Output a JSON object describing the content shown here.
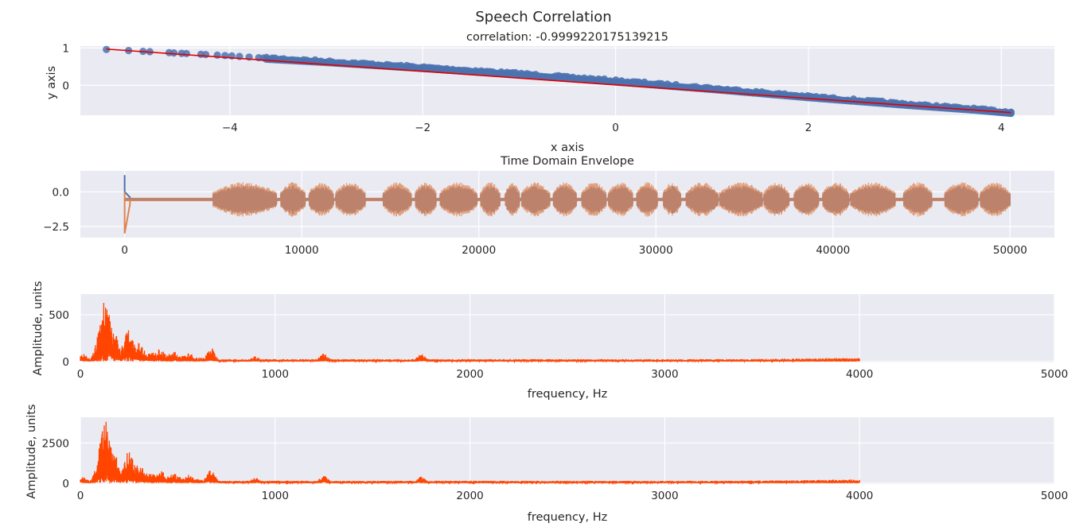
{
  "figure": {
    "title": "Speech Correlation"
  },
  "colors": {
    "axes_bg": "#EAEAF2",
    "grid": "#FFFFFF",
    "scatter": "#4C72B0",
    "regression": "#E00000",
    "envelope_a": "#4C72B0",
    "envelope_b": "#DD8452",
    "spectrum": "#FF4500"
  },
  "chart_data": [
    {
      "type": "scatter",
      "title": "correlation: -0.9999220175139215",
      "xlabel": "x axis",
      "ylabel": "y axis",
      "xlim": [
        -5.55,
        4.55
      ],
      "ylim": [
        -0.8,
        1.05
      ],
      "xticks": [
        -4,
        -2,
        0,
        2,
        4
      ],
      "xtick_labels": [
        "−4",
        "−2",
        "0",
        "2",
        "4"
      ],
      "yticks": [
        0,
        1
      ],
      "ytick_labels": [
        "0",
        "1"
      ],
      "grid": true,
      "x_range": [
        -5.28,
        4.1
      ],
      "correlation": -0.9999220175139215,
      "sample_points": [
        [
          -5.28,
          0.96
        ],
        [
          -5.05,
          0.93
        ],
        [
          -4.9,
          0.91
        ],
        [
          -4.6,
          0.87
        ],
        [
          -4.3,
          0.83
        ],
        [
          -4.0,
          0.79
        ],
        [
          -3.7,
          0.74
        ],
        [
          -3.0,
          0.64
        ],
        [
          -2.0,
          0.48
        ],
        [
          -1.0,
          0.31
        ],
        [
          0.0,
          0.12
        ],
        [
          1.0,
          -0.08
        ],
        [
          2.0,
          -0.3
        ],
        [
          3.0,
          -0.5
        ],
        [
          3.7,
          -0.63
        ],
        [
          4.1,
          -0.72
        ]
      ],
      "regression_line": [
        [
          -5.28,
          0.97
        ],
        [
          4.1,
          -0.73
        ]
      ],
      "legend": "none"
    },
    {
      "type": "line",
      "title": "Time Domain Envelope",
      "xlim": [
        -2500,
        52500
      ],
      "ylim": [
        -3.3,
        1.5
      ],
      "xticks": [
        0,
        10000,
        20000,
        30000,
        40000,
        50000
      ],
      "xtick_labels": [
        "0",
        "10000",
        "20000",
        "30000",
        "40000",
        "50000"
      ],
      "yticks": [
        0.0,
        -2.5
      ],
      "ytick_labels": [
        "0.0",
        "−2.5"
      ],
      "grid": true,
      "n_samples": 50000,
      "speech_segments": [
        [
          5000,
          8600
        ],
        [
          8800,
          10200
        ],
        [
          10400,
          11800
        ],
        [
          11900,
          13600
        ],
        [
          14600,
          16200
        ],
        [
          16400,
          17600
        ],
        [
          17800,
          19900
        ],
        [
          20100,
          21200
        ],
        [
          21500,
          22300
        ],
        [
          22400,
          24000
        ],
        [
          24200,
          25500
        ],
        [
          25800,
          27200
        ],
        [
          27300,
          28700
        ],
        [
          28900,
          30100
        ],
        [
          30400,
          31400
        ],
        [
          31700,
          33500
        ],
        [
          33600,
          36000
        ],
        [
          36100,
          37500
        ],
        [
          37800,
          39200
        ],
        [
          39400,
          40900
        ],
        [
          41000,
          43500
        ],
        [
          44000,
          45600
        ],
        [
          46300,
          48200
        ],
        [
          48300,
          50000
        ]
      ],
      "series": [
        {
          "values": {
            "peak": 1.2,
            "dip": -0.4,
            "speech_amp": 1.1,
            "silence_amp": 0.1
          }
        },
        {
          "values": {
            "peak": -3.0,
            "dip": -0.9,
            "speech_amp": 1.25,
            "silence_amp": 0.12
          }
        }
      ],
      "legend": "none"
    },
    {
      "type": "line",
      "xlabel": "frequency, Hz",
      "ylabel": "Amplitude, units",
      "xlim": [
        0,
        5000
      ],
      "ylim": [
        -10,
        720
      ],
      "xticks": [
        0,
        1000,
        2000,
        3000,
        4000,
        5000
      ],
      "xtick_labels": [
        "0",
        "1000",
        "2000",
        "3000",
        "4000",
        "5000"
      ],
      "yticks": [
        0,
        500
      ],
      "ytick_labels": [
        "0",
        "500"
      ],
      "grid": true,
      "freq_max": 4000,
      "peaks": [
        [
          0,
          100
        ],
        [
          130,
          690
        ],
        [
          160,
          390
        ],
        [
          250,
          340
        ],
        [
          300,
          200
        ],
        [
          410,
          140
        ],
        [
          480,
          110
        ],
        [
          560,
          90
        ],
        [
          670,
          150
        ],
        [
          900,
          60
        ],
        [
          1250,
          90
        ],
        [
          1750,
          80
        ]
      ],
      "legend": "none"
    },
    {
      "type": "line",
      "xlabel": "frequency, Hz",
      "ylabel": "Amplitude, units",
      "xlim": [
        0,
        5000
      ],
      "ylim": [
        -60,
        4100
      ],
      "xticks": [
        0,
        1000,
        2000,
        3000,
        4000,
        5000
      ],
      "xtick_labels": [
        "0",
        "1000",
        "2000",
        "3000",
        "4000",
        "5000"
      ],
      "yticks": [
        0,
        2500
      ],
      "ytick_labels": [
        "0",
        "2500"
      ],
      "grid": true,
      "freq_max": 4000,
      "peaks": [
        [
          0,
          450
        ],
        [
          130,
          3850
        ],
        [
          160,
          2300
        ],
        [
          250,
          2000
        ],
        [
          300,
          1150
        ],
        [
          410,
          900
        ],
        [
          480,
          650
        ],
        [
          560,
          550
        ],
        [
          670,
          880
        ],
        [
          900,
          360
        ],
        [
          1250,
          480
        ],
        [
          1750,
          420
        ]
      ],
      "legend": "none"
    }
  ]
}
